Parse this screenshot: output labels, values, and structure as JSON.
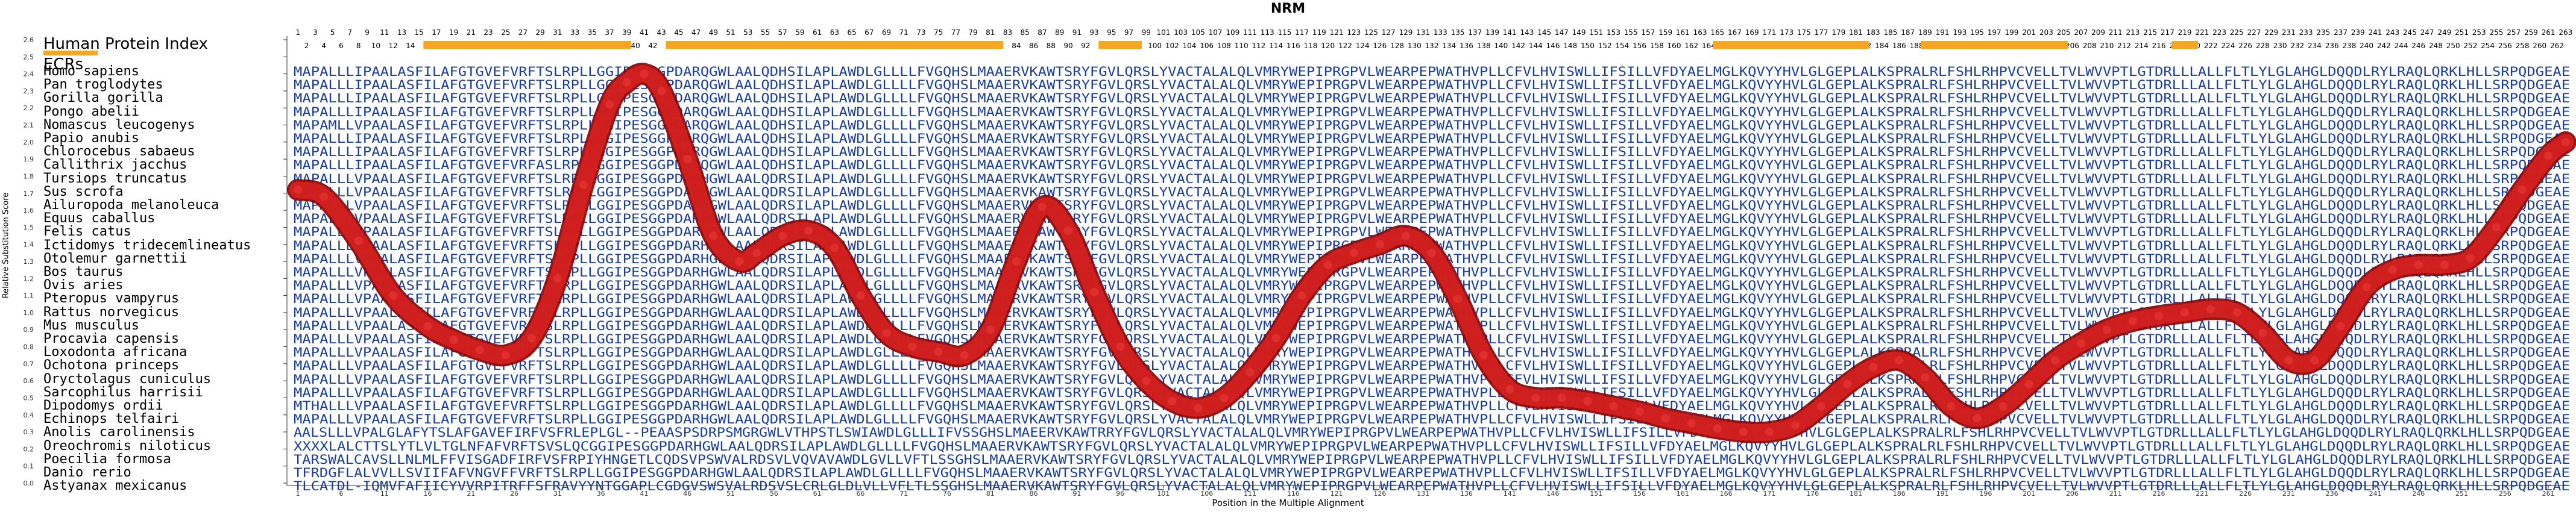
{
  "chart_data": {
    "type": "line",
    "title": "NRM",
    "xlabel": "Position in the Multiple Alignment",
    "ylabel": "Relative Substitution Score",
    "ylim": [
      0,
      2.6
    ],
    "yticks": [
      0.0,
      0.1,
      0.2,
      0.3,
      0.4,
      0.5,
      0.6,
      0.7,
      0.8,
      0.9,
      1.0,
      1.1,
      1.2,
      1.3,
      1.4,
      1.5,
      1.6,
      1.7,
      1.8,
      1.9,
      2.0,
      2.1,
      2.2,
      2.3,
      2.4,
      2.5,
      2.6
    ],
    "xlim": [
      1,
      263
    ],
    "xticks": [
      1,
      6,
      11,
      16,
      21,
      26,
      31,
      36,
      41,
      46,
      51,
      56,
      61,
      66,
      71,
      76,
      81,
      86,
      91,
      96,
      101,
      106,
      111,
      116,
      121,
      126,
      131,
      136,
      141,
      146,
      151,
      156,
      161,
      166,
      171,
      176,
      181,
      186,
      191,
      196,
      201,
      206,
      211,
      216,
      221,
      226,
      231,
      236,
      241,
      246,
      251,
      256,
      261
    ],
    "grid": false,
    "header_label": "Human Protein Index",
    "ecr_label": "ECRs",
    "ecr_regions": [
      [
        16,
        39
      ],
      [
        44,
        82
      ],
      [
        94,
        98
      ],
      [
        165,
        182
      ],
      [
        189,
        205
      ],
      [
        218,
        220
      ]
    ],
    "series": [
      {
        "x": [
          1,
          4,
          8,
          12,
          16,
          19,
          22,
          25,
          28,
          31,
          34,
          37,
          39,
          41,
          43,
          46,
          49,
          52,
          54,
          57,
          60,
          63,
          66,
          69,
          72,
          75,
          78,
          81,
          84,
          87,
          90,
          93,
          96,
          99,
          102,
          105,
          108,
          111,
          114,
          117,
          120,
          123,
          126,
          129,
          132,
          135,
          138,
          141,
          144,
          147,
          150,
          153,
          156,
          159,
          162,
          165,
          168,
          171,
          174,
          177,
          180,
          183,
          186,
          189,
          192,
          195,
          198,
          201,
          204,
          207,
          210,
          213,
          216,
          219,
          222,
          225,
          228,
          231,
          234,
          237,
          240,
          243,
          246,
          249,
          252,
          255,
          258,
          261,
          263
        ],
        "y": [
          1.72,
          1.68,
          1.42,
          1.1,
          0.92,
          0.84,
          0.78,
          0.75,
          0.85,
          1.2,
          1.75,
          2.22,
          2.35,
          2.4,
          2.3,
          1.9,
          1.45,
          1.3,
          1.35,
          1.45,
          1.48,
          1.38,
          1.1,
          0.88,
          0.8,
          0.77,
          0.75,
          0.9,
          1.3,
          1.62,
          1.48,
          1.12,
          0.8,
          0.6,
          0.48,
          0.44,
          0.5,
          0.65,
          0.85,
          1.1,
          1.28,
          1.35,
          1.4,
          1.45,
          1.35,
          1.08,
          0.75,
          0.55,
          0.5,
          0.5,
          0.48,
          0.45,
          0.42,
          0.38,
          0.35,
          0.32,
          0.3,
          0.3,
          0.34,
          0.45,
          0.58,
          0.68,
          0.72,
          0.62,
          0.45,
          0.38,
          0.45,
          0.58,
          0.72,
          0.82,
          0.9,
          0.95,
          0.98,
          1.0,
          1.02,
          1.0,
          0.88,
          0.72,
          0.72,
          0.92,
          1.15,
          1.25,
          1.28,
          1.28,
          1.32,
          1.5,
          1.72,
          1.92,
          2.0
        ]
      }
    ]
  },
  "species": [
    "Homo sapiens",
    "Pan troglodytes",
    "Gorilla gorilla",
    "Pongo abelii",
    "Nomascus leucogenys",
    "Papio anubis",
    "Chlorocebus sabaeus",
    "Callithrix jacchus",
    "Tursiops truncatus",
    "Sus scrofa",
    "Ailuropoda melanoleuca",
    "Equus caballus",
    "Felis catus",
    "Ictidomys tridecemlineatus",
    "Otolemur garnettii",
    "Bos taurus",
    "Ovis aries",
    "Pteropus vampyrus",
    "Rattus norvegicus",
    "Mus musculus",
    "Procavia capensis",
    "Loxodonta africana",
    "Ochotona princeps",
    "Oryctolagus cuniculus",
    "Sarcophilus harrisii",
    "Dipodomys ordii",
    "Echinops telfairi",
    "Anolis carolinensis",
    "Oreochromis niloticus",
    "Poecilia formosa",
    "Danio rerio",
    "Astyanax mexicanus"
  ],
  "sequences": [
    "MAPALLLIPAALASFILAFGTGVEFVRFTSLRPLLGGIPESGGPDARQGWLAALQDHSILAPLAWDLGLLLLFVGQHSLMAAERVKAWTSRYFGVLQRSLYVACTALALQLVMRYWEPIPRGPVLWEARPEPWATHVPLLCFVLHVISWLLIFSILLVFDYAELMGLKQVYYHVLGLGEPLALKSPRALRLFSHLRHPVCVELLTVLWVVPTLGTDRLLLALLFLTLYLGLAHGLDQQDLRYLRAQLQRKLHLLSRPQDGEAE",
    "MAPALLLIPAALASFILAFGTGVEFVRFTSLRPLLGGIPESGGPDARQGWLAALQDHSILAPLAWDLGLLLLFVGQHSLMAAERVKAWTSRYFGVLQRSLYVACTALALQLVMRYWEPIPRGPVLWEARPEPWATHVPLLCFVLHVISWLLIFSILLVFDYAELMGLKQVYYHVLGLGEPLALKSPRALRLFSHLRHPVCVELLTVLWVVPTLGTDRLLLALLFLTLYLGLAHGLDQQDLRYLRAQLQRKLHLLSRPQDGEAE",
    "MAPALLLIPAALASFILAFGTGVEFVRFTSLRPLLGGIPESGGPDARQGWLAALQDHSILAPLAWDLGLLLLFVGQHSLMAAERVKAWTSRYFGVLQRSLYVACTALALQLVMRYWEPIPRGPVLWEARPEPWATHVPLLCFVLHVISWLLIFSILLVFDYAELMGLKQVYYHVLGLGEPLALKSPRALRLFSHLRHPVCVELLTVLWVVPTLGTDRLLLALLFLTLYLGLAHGLDQQDLRYLRAQLQRKLHLLSRPQDGEAE",
    "MAPALLLIPAALASFILAFGTGVEFVRFTSLRPLLGGIPESGGPDARQGWLAALQDHSILAPLAWDLGLLLLFVGQHSLMAAERVKAWTSRYFGVLQRSLYVACTALALQLVMRYWEPIPRGPVLWEARPEPWATHVPLLCFVLHVISWLLIFSILLVFDYAELMGLKQVYYHVLGLGEPLALKSPRALRLFSHLRHPVCVELLTVLWVVPTLGTDRLLLALLFLTLYLGLAHGLDQQDLRYLRAQLQRKLHLLSRPQDGEAE",
    "MAPAMLLVPAALASFILAFGTGVEFVRFTSLRPLLGGIPESGGPDARQGWLAALQDHSILAPLAWDLGLLLLFVGQHSLMAAERVKAWTSRYFGVLQRSLYVACTALALQLVMRYWEPIPRGPVLWEARPEPWATHVPLLCFVLHVISWLLIFSILLVFDYAELMGLKQVYYHVLGLGEPLALKSPRALRLFSHLRHPVCVELLTVLWVVPTLGTDRLLLALLFLTLYLGLAHGLDQQDLRYLRAQLQRKLHLLSRPQDGEAE",
    "MAPALLLIPAALASFILAFGTGVEFVRFTSLRPLLGGIPESGGPDARQGWLAALQDHSILAPLAWDLGLLLLFVGQHSLMAAERVKAWTSRYFGVLQRSLYVACTALALQLVMRYWEPIPRGPVLWEARPEPWATHVPLLCFVLHVISWLLIFSILLVFDYAELMGLKQVYYHVLGLGEPLALKSPRALRLFSHLRHPVCVELLTVLWVVPTLGTDRLLLALLFLTLYLGLAHGLDQQDLRYLRAQLQRKLHLLSRPQDGEAE",
    "MAPALLLIPAALASFILAFGTGVEFVRFTSLRPLLGGIPESGGPDARQGWLAALQDHSILAPLAWDLGLLLLFVGQHSLMAAERVKAWTSRYFGVLQRSLYVACTALALQLVMRYWEPIPRGPVLWEARPEPWATHVPLLCFVLHVISWLLIFSILLVFDYAELMGLKQVYYHVLGLGEPLALKSPRALRLFSHLRHPVCVELLTVLWVVPTLGTDRLLLALLFLTLYLGLAHGLDQQDLRYLRAQLQRKLHLLSRPQDGEAE",
    "MAPALLLIPAALASFILAFGTGVEFVRFASLRPLLGGIPESGGPDARQGWLAALQDHSILAPLAWDLGLLLLFVGQHSLMAAERVKAWTSRYFGVLQRSLYVACTALALQLVMRYWEPIPRGPVLWEARPEPWATHVPLLCFVLHVISWLLIFSILLVFDYAELMGLKQVYYHVLGLGEPLALKSPRALRLFSHLRHPVCVELLTVLWVVPTLGTDRLLLALLFLTLYLGLAHGLDQQDLRYLRAQLQRKLHLLSRPQDGEAE",
    "MAPALLLVPAALASFILAFGTGVEFVRFTSLRPLLGGIPESGGPDARHGWLAALQDRSILAPLAWDLGLLLLFVGQHSLMAAERVKAWTSRYFGVLQRSLYVACTALALQLVMRYWEPIPRGPVLWEARPEPWATHVPLLCFVLHVISWLLIFSILLVFDYAELMGLKQVYYHVLGLGEPLALKSPRALRLFSHLRHPVCVELLTVLWVVPTLGTDRLLLALLFLTLYLGLAHGLDQQDLRYLRAQLQRKLHLLSRPQDGEAE",
    "MAPALLLVPAALASFILAFGTGVEFVRFTSLRPLLGGIPESGGPDARHGWLAALQDRSILAPLAWDLGLLLLFVGQHSLMAAERVKAWTSRYFGVLQRSLYVACTALALQLVMRYWEPIPRGPVLWEARPEPWATHVPLLCFVLHVISWLLIFSILLVFDYAELMGLKQVYYHVLGLGEPLALKSPRALRLFSHLRHPVCVELLTVLWVVPTLGTDRLLLALLFLTLYLGLAHGLDQQDLRYLRAQLQRKLHLLSRPQDGEAE",
    "MAPALLLVPAALASFILAFGTGVEFVRFTSLRPLLGGIPESGGPDARHGWLAALQDRSILAPLAWDLGLLLLFVGQHSLMAAERVKAWTSRYFGVLQRSLYVACTALALQLVMRYWEPIPRGPVLWEARPEPWATHVPLLCFVLHVISWLLIFSILLVFDYAELMGLKQVYYHVLGLGEPLALKSPRALRLFSHLRHPVCVELLTVLWVVPTLGTDRLLLALLFLTLYLGLAHGLDQQDLRYLRAQLQRKLHLLSRPQDGEAE",
    "MAPALLLVPAALASFILAFGTGVEFVRFTSLRPLLGGIPESGGPDARHGWLAALQDRSILAPLAWDLGLLLLFVGQHSLMAAERVKAWTSRYFGVLQRSLYVACTALALQLVMRYWEPIPRGPVLWEARPEPWATHVPLLCFVLHVISWLLIFSILLVFDYAELMGLKQVYYHVLGLGEPLALKSPRALRLFSHLRHPVCVELLTVLWVVPTLGTDRLLLALLFLTLYLGLAHGLDQQDLRYLRAQLQRKLHLLSRPQDGEAE",
    "MAPALLLVPAALASFILAFGTGVEFVRFTSLRPLLGGIPESGGPDARHGWLAALQDRSILAPLAWDLGLLLLFVGQHSLMAAERVKAWTSRYFGVLQRSLYVACTALALQLVMRYWEPIPRGPVLWEARPEPWATHVPLLCFVLHVISWLLIFSILLVFDYAELMGLKQVYYHVLGLGEPLALKSPRALRLFSHLRHPVCVELLTVLWVVPTLGTDRLLLALLFLTLYLGLAHGLDQQDLRYLRAQLQRKLHLLSRPQDGEAE",
    "MAPALLLVPAALASFILAFGTGVEFVRFTSLRPLLGGIPESGGPDARHGWLAALQDRSILAPLAWDLGLLLLFVGQHSLMAAERVKAWTSRYFGVLQRSLYVACTALALQLVMRYWEPIPRGPVLWEARPEPWATHVPLLCFVLHVISWLLIFSILLVFDYAELMGLKQVYYHVLGLGEPLALKSPRALRLFSHLRHPVCVELLTVLWVVPTLGTDRLLLALLFLTLYLGLAHGLDQQDLRYLRAQLQRKLHLLSRPQDGEAE",
    "MAPALLLVPAALASFILAFGTGVEFVRFTSLRPLLGGIPESGGPDARHGWLAALQDRSILAPLAWDLGLLLLFVGQHSLMAAERVKAWTSRYFGVLQRSLYVACTALALQLVMRYWEPIPRGPVLWEARPEPWATHVPLLCFVLHVISWLLIFSILLVFDYAELMGLKQVYYHVLGLGEPLALKSPRALRLFSHLRHPVCVELLTVLWVVPTLGTDRLLLALLFLTLYLGLAHGLDQQDLRYLRAQLQRKLHLLSRPQDGEAE",
    "MAPALLLVPAALASFILAFGTGVEFVRFTSLRPLLGGIPESGGPDARHGWLAALQDRSILAPLAWDLGLLLLFVGQHSLMAAERVKAWTSRYFGVLQRSLYVACTALALQLVMRYWEPIPRGPVLWEARPEPWATHVPLLCFVLHVISWLLIFSILLVFDYAELMGLKQVYYHVLGLGEPLALKSPRALRLFSHLRHPVCVELLTVLWVVPTLGTDRLLLALLFLTLYLGLAHGLDQQDLRYLRAQLQRKLHLLSRPQDGEAE",
    "MAPALLLVPAALASFILAFGTGVEFVRFTSLRPLLGGIPESGGPDARHGWLAALQDRSILAPLAWDLGLLLLFVGQHSLMAAERVKAWTSRYFGVLQRSLYVACTALALQLVMRYWEPIPRGPVLWEARPEPWATHVPLLCFVLHVISWLLIFSILLVFDYAELMGLKQVYYHVLGLGEPLALKSPRALRLFSHLRHPVCVELLTVLWVVPTLGTDRLLLALLFLTLYLGLAHGLDQQDLRYLRAQLQRKLHLLSRPQDGEAE",
    "MAPALLLVPAALASFILAFGTGVEFVRFTSLRPLLGGIPESGGPDARHGWLAALQDRSILAPLAWDLGLLLLFVGQHSLMAAERVKAWTSRYFGVLQRSLYVACTALALQLVMRYWEPIPRGPVLWEARPEPWATHVPLLCFVLHVISWLLIFSILLVFDYAELMGLKQVYYHVLGLGEPLALKSPRALRLFSHLRHPVCVELLTVLWVVPTLGTDRLLLALLFLTLYLGLAHGLDQQDLRYLRAQLQRKLHLLSRPQDGEAE",
    "MAPALLLVPAALASFILAFGTGVEFVRFTSLRPLLGGIPESGGPDARHGWLAALQDRSILAPLAWDLGLLLLFVGQHSLMAAERVKAWTSRYFGVLQRSLYVACTALALQLVMRYWEPIPRGPVLWEARPEPWATHVPLLCFVLHVISWLLIFSILLVFDYAELMGLKQVYYHVLGLGEPLALKSPRALRLFSHLRHPVCVELLTVLWVVPTLGTDRLLLALLFLTLYLGLAHGLDQQDLRYLRAQLQRKLHLLSRPQDGEAE",
    "MAPALLLVPAALASFILAFGTGVEFVRFTSLRPLLGGIPESGGPDARHGWLAALQDRSILAPLAWDLGLLLLFVGQHSLMAAERVKAWTSRYFGVLQRSLYVACTALALQLVMRYWEPIPRGPVLWEARPEPWATHVPLLCFVLHVISWLLIFSILLVFDYAELMGLKQVYYHVLGLGEPLALKSPRALRLFSHLRHPVCVELLTVLWVVPTLGTDRLLLALLFLTLYLGLAHGLDQQDLRYLRAQLQRKLHLLSRPQDGEAE",
    "MAPALLLVPAALASFILAFGTGVEFVRFTSLRPLLGGIPESGGPDARHGWLAALQDRSILAPLAWDLGLLLLFVGQHSLMAAERVKAWTSRYFGVLQRSLYVACTALALQLVMRYWEPIPRGPVLWEARPEPWATHVPLLCFVLHVISWLLIFSILLVFDYAELMGLKQVYYHVLGLGEPLALKSPRALRLFSHLRHPVCVELLTVLWVVPTLGTDRLLLALLFLTLYLGLAHGLDQQDLRYLRAQLQRKLHLLSRPQDGEAE",
    "MAPALLLVPAALASFILAFGTGVEFVRFTSLRPLLGGIPESGGPDARHGWLAALQDRSILAPLAWDLGLLLLFVGQHSLMAAERVKAWTSRYFGVLQRSLYVACTALALQLVMRYWEPIPRGPVLWEARPEPWATHVPLLCFVLHVISWLLIFSILLVFDYAELMGLKQVYYHVLGLGEPLALKSPRALRLFSHLRHPVCVELLTVLWVVPTLGTDRLLLALLFLTLYLGLAHGLDQQDLRYLRAQLQRKLHLLSRPQDGEAE",
    "MAPALLLVPAALASFILAFGTGVEFVRFTSLRPLLGGIPESGGPDARHGWLAALQDRSILAPLAWDLGLLLLFVGQHSLMAAERVKAWTSRYFGVLQRSLYVACTALALQLVMRYWEPIPRGPVLWEARPEPWATHVPLLCFVLHVISWLLIFSILLVFDYAELMGLKQVYYHVLGLGEPLALKSPRALRLFSHLRHPVCVELLTVLWVVPTLGTDRLLLALLFLTLYLGLAHGLDQQDLRYLRAQLQRKLHLLSRPQDGEAE",
    "MAPALLLVPAALASFILAFGTGVEFVRFTSLRPLLGGIPESGGPDARHGWLAALQDRSILAPLAWDLGLLLLFVGQHSLMAAERVKAWTSRYFGVLQRSLYVACTALALQLVMRYWEPIPRGPVLWEARPEPWATHVPLLCFVLHVISWLLIFSILLVFDYAELMGLKQVYYHVLGLGEPLALKSPRALRLFSHLRHPVCVELLTVLWVVPTLGTDRLLLALLFLTLYLGLAHGLDQQDLRYLRAQLQRKLHLLSRPQDGEAE",
    "MAPALLLVPAALASFILAFGTGVEFVRFTSLRPLLGGIPESGGPDARHGWLAALQDRSILAPLAWDLGLLLLFVGQHSLMAAERVKAWTSRYFGVLQRSLYVACTALALQLVMRYWEPIPRGPVLWEARPEPWATHVPLLCFVLHVISWLLIFSILLVFDYAELMGLKQVYYHVLGLGEPLALKSPRALRLFSHLRHPVCVELLTVLWVVPTLGTDRLLLALLFLTLYLGLAHGLDQQDLRYLRAQLQRKLHLLSRPQDGEAE",
    "MTHALLLVPAALASFILAFGTGVEFVRFTSLRPLLGGIPESGGPDARHGWLAALQDRSILAPLAWDLGLLLLFVGQHSLMAAERVKAWTSRYFGVLQRSLYVACTALALQLVMRYWEPIPRGPVLWEARPEPWATHVPLLCFVLHVISWLLIFSILLVFDYAELMGLKQVYYHVLGLGEPLALKSPRALRLFSHLRHPVCVELLTVLWVVPTLGTDRLLLALLFLTLYLGLAHGLDQQDLRYLRAQLQRKLHLLSRPQDGEAE",
    "MAPALLLVPAALASFILAFGTGVEFVRFTSLRPLLGGIPESGGPDARHGWLAALQDRSILAPLAWDLGLLLLFVGQHSLMAAERVKAWTSRYFGVLQRSLYVACTALALQLVMRYWEPIPRGPVLWEARPEPWATHVPLLCFVLHVISWLLIFSILLVFDYAELMGLKQVYYHVLGLGEPLALKSPRALRLFSHLRHPVCVELLTVLWVVPTLGTDRLLLALLFLTLYLGLAHGLDQQDLRYLRAQLQRKLHLLSRPQDGEAE",
    "AALSLLLVPALGLAFYTSLAFGAVEFIRFVSFRLEPLGL--PEAASPSDRPSMGRGWLVTHPSTLSWIAWDLGLLLIFVSSGHSLMAEERVKAWTRRYFGVLQRSLYVACTALALQLVMRYWEPIPRGPVLWEARPEPWATHVPLLCFVLHVISWLLIFSILLVFDYAELMGLKQVYYHVLGLGEPLALKSPRALRLFSHLRHPVCVELLTVLWVVPTLGTDRLLLALLFLTLYLGLAHGLDQQDLRYLRAQLQRKLHLLSRPQDGEAE",
    "XXXXLALCTTSLYTLVLTGLNFAFVRFTSVSLQCGGIPESGGPDARHGWLAALQDRSILAPLAWDLGLLLLFVGQHSLMAAERVKAWTSRYFGVLQRSLYVACTALALQLVMRYWEPIPRGPVLWEARPEPWATHVPLLCFVLHVISWLLIFSILLVFDYAELMGLKQVYYHVLGLGEPLALKSPRALRLFSHLRHPVCVELLTVLWVVPTLGTDRLLLALLFLTLYLGLAHGLDQQDLRYLRAQLQRKLHLLSRPQDGEAE",
    "TARSWALCAVSLLNLMLFFVISGADFIRFVSFRPIYHNGETLCQDSVPSWVALRDSVLVQVAVAWDLGVLLVFTLSSGHSLMAAERVKAWTSRYFGVLQRSLYVACTALALQLVMRYWEPIPRGPVLWEARPEPWATHVPLLCFVLHVISWLLIFSILLVFDYAELMGLKQVYYHVLGLGEPLALKSPRALRLFSHLRHPVCVELLTVLWVVPTLGTDRLLLALLFLTLYLGLAHGLDQQDLRYLRAQLQRKLHLLSRPQDGEAE",
    "TFRDGFLALVVLLSVIIFAFVNGVFFVRFTSLRPLLGGIPESGGPDARHGWLAALQDRSILAPLAWDLGLLLLFVGQHSLMAAERVKAWTSRYFGVLQRSLYVACTALALQLVMRYWEPIPRGPVLWEARPEPWATHVPLLCFVLHVISWLLIFSILLVFDYAELMGLKQVYYHVLGLGEPLALKSPRALRLFSHLRHPVCVELLTVLWVVPTLGTDRLLLALLFLTLYLGLAHGLDQQDLRYLRAQLQRKLHLLSRPQDGEAE",
    "TLCATDL-IQMVFAFIICYVVRPITRFFSFRAVYYNTGGAPLCGDGVSWSVALRDSVSLCRLGLDLVLLVFLTLSSGHSLMAAERVKAWTSRYFGVLQRSLYVACTALALQLVMRYWEPIPRGPVLWEARPEPWATHVPLLCFVLHVISWLLIFSILLVFDYAELMGLKQVYYHVLGLGEPLALKSPRALRLFSHLRHPVCVELLTVLWVVPTLGTDRLLLALLFLTLYLGLAHGLDQQDLRYLRAQLQRKLHLLSRPQDGEAE"
  ]
}
